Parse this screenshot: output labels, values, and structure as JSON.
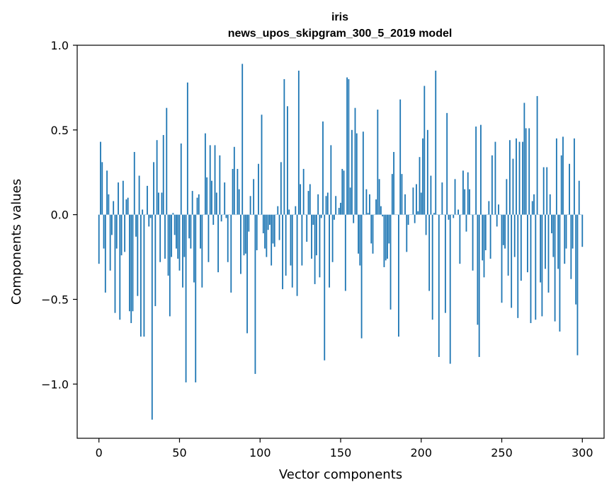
{
  "chart_data": {
    "type": "bar",
    "title": "iris",
    "subtitle": "news_upos_skipgram_300_5_2019 model",
    "xlabel": "Vector components",
    "ylabel": "Components values",
    "xlim": [
      -13.5,
      313.5
    ],
    "ylim": [
      -1.32,
      1.0
    ],
    "x_ticks": [
      0,
      50,
      100,
      150,
      200,
      250,
      300
    ],
    "x_tick_labels": [
      "0",
      "50",
      "100",
      "150",
      "200",
      "250",
      "300"
    ],
    "y_ticks": [
      1.0,
      0.5,
      0.0,
      -0.5,
      -1.0
    ],
    "y_tick_labels": [
      "1.0",
      "0.5",
      "0.0",
      "−0.5",
      "−1.0"
    ],
    "bar_color": "#1f77b4",
    "series": [
      {
        "name": "iris",
        "values": [
          -0.29,
          0.43,
          0.31,
          -0.2,
          -0.46,
          0.26,
          0.12,
          -0.33,
          -0.12,
          0.08,
          -0.58,
          -0.2,
          0.19,
          -0.62,
          -0.24,
          0.2,
          -0.22,
          0.09,
          0.1,
          -0.57,
          -0.64,
          -0.57,
          0.37,
          -0.13,
          -0.48,
          0.23,
          -0.72,
          0.03,
          -0.72,
          0.0,
          0.17,
          -0.07,
          -0.02,
          -1.21,
          0.31,
          -0.54,
          0.44,
          0.13,
          -0.28,
          0.13,
          0.47,
          -0.26,
          0.63,
          -0.36,
          -0.6,
          -0.25,
          0.01,
          -0.12,
          -0.2,
          -0.26,
          -0.33,
          0.42,
          -0.43,
          -0.25,
          -0.99,
          0.78,
          -0.14,
          -0.2,
          0.14,
          -0.4,
          -0.99,
          0.1,
          0.12,
          -0.2,
          -0.43,
          0.0,
          0.48,
          0.22,
          -0.28,
          0.41,
          0.2,
          -0.06,
          0.41,
          0.13,
          -0.34,
          0.35,
          -0.04,
          0.0,
          0.19,
          -0.02,
          -0.28,
          0.0,
          -0.46,
          0.27,
          0.4,
          0.0,
          0.27,
          0.15,
          -0.35,
          0.89,
          -0.24,
          -0.23,
          -0.7,
          -0.1,
          0.11,
          0.0,
          0.21,
          -0.94,
          -0.21,
          0.3,
          0.0,
          0.59,
          -0.11,
          -0.2,
          -0.25,
          -0.09,
          -0.06,
          -0.3,
          -0.17,
          -0.19,
          0.0,
          0.05,
          -0.15,
          0.31,
          -0.44,
          0.8,
          -0.36,
          0.64,
          0.03,
          -0.3,
          -0.43,
          0.0,
          0.05,
          -0.48,
          0.85,
          0.18,
          -0.3,
          0.27,
          0.0,
          -0.16,
          0.14,
          0.18,
          -0.26,
          -0.06,
          -0.41,
          -0.24,
          0.12,
          -0.37,
          -0.02,
          0.55,
          -0.86,
          0.11,
          0.13,
          -0.43,
          0.41,
          -0.28,
          -0.03,
          0.11,
          0.0,
          0.04,
          0.07,
          0.27,
          0.26,
          -0.45,
          0.81,
          0.8,
          0.16,
          0.5,
          -0.05,
          0.63,
          0.48,
          -0.23,
          -0.3,
          -0.73,
          0.49,
          0.0,
          0.15,
          0.01,
          0.12,
          -0.17,
          -0.23,
          0.0,
          0.09,
          0.62,
          0.21,
          0.05,
          -0.01,
          -0.31,
          -0.27,
          -0.26,
          -0.17,
          -0.56,
          0.24,
          0.37,
          0.0,
          0.0,
          -0.72,
          0.68,
          0.24,
          0.0,
          0.12,
          -0.22,
          -0.06,
          0.0,
          0.0,
          0.16,
          -0.05,
          0.18,
          0.02,
          0.34,
          0.13,
          0.45,
          0.76,
          -0.12,
          0.5,
          -0.45,
          0.23,
          -0.62,
          0.01,
          0.85,
          0.0,
          -0.84,
          0.0,
          0.19,
          0.0,
          -0.58,
          0.6,
          -0.03,
          -0.88,
          0.0,
          -0.02,
          0.21,
          0.0,
          0.03,
          -0.29,
          0.0,
          0.26,
          0.15,
          -0.1,
          0.25,
          0.15,
          0.0,
          -0.33,
          0.0,
          0.52,
          -0.65,
          -0.84,
          0.53,
          -0.27,
          -0.37,
          -0.21,
          0.0,
          0.08,
          -0.26,
          0.35,
          0.0,
          0.43,
          -0.07,
          0.06,
          0.0,
          -0.52,
          -0.18,
          -0.2,
          0.21,
          -0.36,
          0.44,
          -0.55,
          0.33,
          -0.25,
          0.45,
          -0.61,
          0.43,
          -0.39,
          0.43,
          0.66,
          0.51,
          -0.34,
          0.51,
          -0.64,
          0.08,
          0.12,
          -0.62,
          0.7,
          0.0,
          -0.4,
          -0.6,
          0.28,
          -0.32,
          0.28,
          -0.46,
          0.12,
          -0.11,
          -0.25,
          -0.63,
          0.45,
          -0.32,
          -0.69,
          0.35,
          0.46,
          -0.29,
          -0.2,
          0.0,
          0.3,
          -0.38,
          -0.2,
          0.45,
          -0.53,
          -0.83,
          0.2,
          0.0,
          -0.19
        ]
      }
    ]
  }
}
